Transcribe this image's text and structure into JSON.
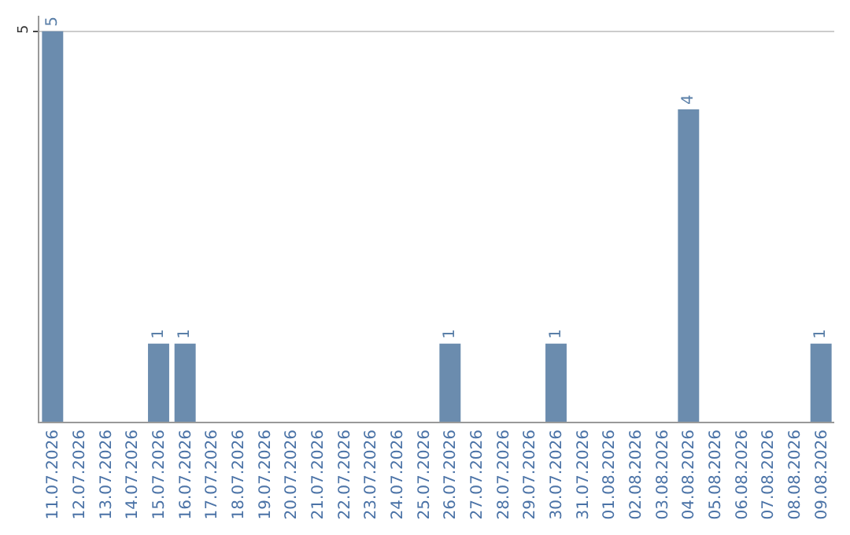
{
  "chart_data": {
    "type": "bar",
    "categories": [
      "11.07.2026",
      "12.07.2026",
      "13.07.2026",
      "14.07.2026",
      "15.07.2026",
      "16.07.2026",
      "17.07.2026",
      "18.07.2026",
      "19.07.2026",
      "20.07.2026",
      "21.07.2026",
      "22.07.2026",
      "23.07.2026",
      "24.07.2026",
      "25.07.2026",
      "26.07.2026",
      "27.07.2026",
      "28.07.2026",
      "29.07.2026",
      "30.07.2026",
      "31.07.2026",
      "01.08.2026",
      "02.08.2026",
      "03.08.2026",
      "04.08.2026",
      "05.08.2026",
      "06.08.2026",
      "07.08.2026",
      "08.08.2026",
      "09.08.2026"
    ],
    "values": [
      5,
      0,
      0,
      0,
      1,
      1,
      0,
      0,
      0,
      0,
      0,
      0,
      0,
      0,
      0,
      1,
      0,
      0,
      0,
      1,
      0,
      0,
      0,
      0,
      4,
      0,
      0,
      0,
      0,
      1
    ],
    "value_labels": [
      "5",
      null,
      null,
      null,
      "1",
      "1",
      null,
      null,
      null,
      null,
      null,
      null,
      null,
      null,
      null,
      "1",
      null,
      null,
      null,
      "1",
      null,
      null,
      null,
      null,
      "4",
      null,
      null,
      null,
      null,
      "1"
    ],
    "color": "#6b8cae",
    "ylim": [
      0,
      5.2
    ],
    "yticks": [
      5
    ],
    "grid": "y"
  }
}
